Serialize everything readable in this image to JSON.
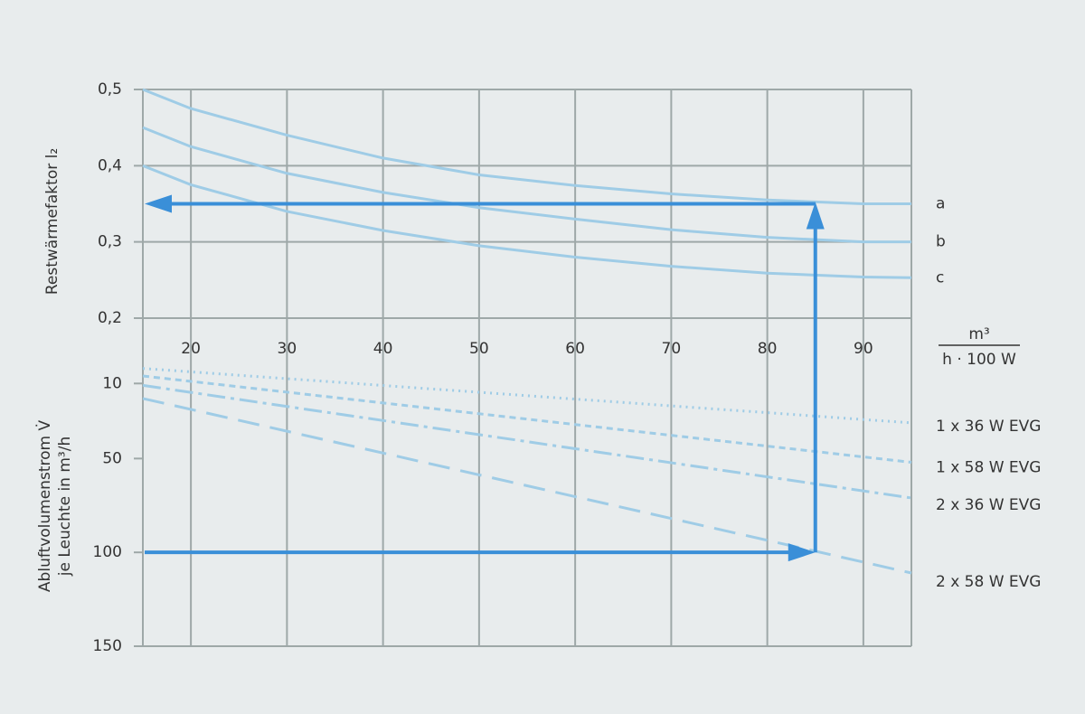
{
  "chart_data": [
    {
      "type": "line",
      "y_label": "Restwärmefaktor l₂",
      "x_unit": {
        "numerator": "m³",
        "denominator": "h · 100 W"
      },
      "xlim": [
        15,
        95
      ],
      "xticks": [
        20,
        30,
        40,
        50,
        60,
        70,
        80,
        90
      ],
      "ylim": [
        0.2,
        0.5
      ],
      "yticks": [
        {
          "value": 0.2,
          "label": "0,2"
        },
        {
          "value": 0.3,
          "label": "0,3"
        },
        {
          "value": 0.4,
          "label": "0,4"
        },
        {
          "value": 0.5,
          "label": "0,5"
        }
      ],
      "grid": true,
      "x": [
        15,
        20,
        30,
        40,
        50,
        60,
        70,
        80,
        90,
        95
      ],
      "series": [
        {
          "name": "a",
          "color": "#9fcce6",
          "style": "solid",
          "values": [
            0.5,
            0.475,
            0.44,
            0.41,
            0.388,
            0.374,
            0.363,
            0.355,
            0.35,
            0.35
          ]
        },
        {
          "name": "b",
          "color": "#9fcce6",
          "style": "solid",
          "values": [
            0.45,
            0.425,
            0.39,
            0.365,
            0.345,
            0.33,
            0.316,
            0.306,
            0.3,
            0.3
          ]
        },
        {
          "name": "c",
          "color": "#9fcce6",
          "style": "solid",
          "values": [
            0.4,
            0.375,
            0.34,
            0.315,
            0.295,
            0.28,
            0.268,
            0.259,
            0.254,
            0.253
          ]
        }
      ],
      "arrow": {
        "x": 85,
        "y": 0.35,
        "color": "#3a8fd8"
      }
    },
    {
      "type": "line",
      "y_label": [
        "Abluftvolumenstrom V̇",
        "je Leuchte in m³/h"
      ],
      "xlim": [
        15,
        95
      ],
      "xticks": [
        20,
        30,
        40,
        50,
        60,
        70,
        80,
        90
      ],
      "ylim": [
        -20,
        150
      ],
      "inverted": true,
      "yticks": [
        10,
        50,
        100,
        150
      ],
      "x": [
        15,
        95
      ],
      "series": [
        {
          "name": "1 x 36 W EVG",
          "color": "#9fcce6",
          "style": "dotted",
          "values": [
            2,
            31
          ]
        },
        {
          "name": "1 x 58 W EVG",
          "color": "#9fcce6",
          "style": "dashed",
          "values": [
            6,
            52
          ]
        },
        {
          "name": "2 x 36 W EVG",
          "color": "#9fcce6",
          "style": "dashdot",
          "values": [
            11,
            71
          ]
        },
        {
          "name": "2 x 58 W EVG",
          "color": "#9fcce6",
          "style": "longdash",
          "values": [
            18,
            111
          ]
        }
      ],
      "arrow": {
        "x": 85,
        "y": 100,
        "color": "#3a8fd8"
      }
    }
  ]
}
